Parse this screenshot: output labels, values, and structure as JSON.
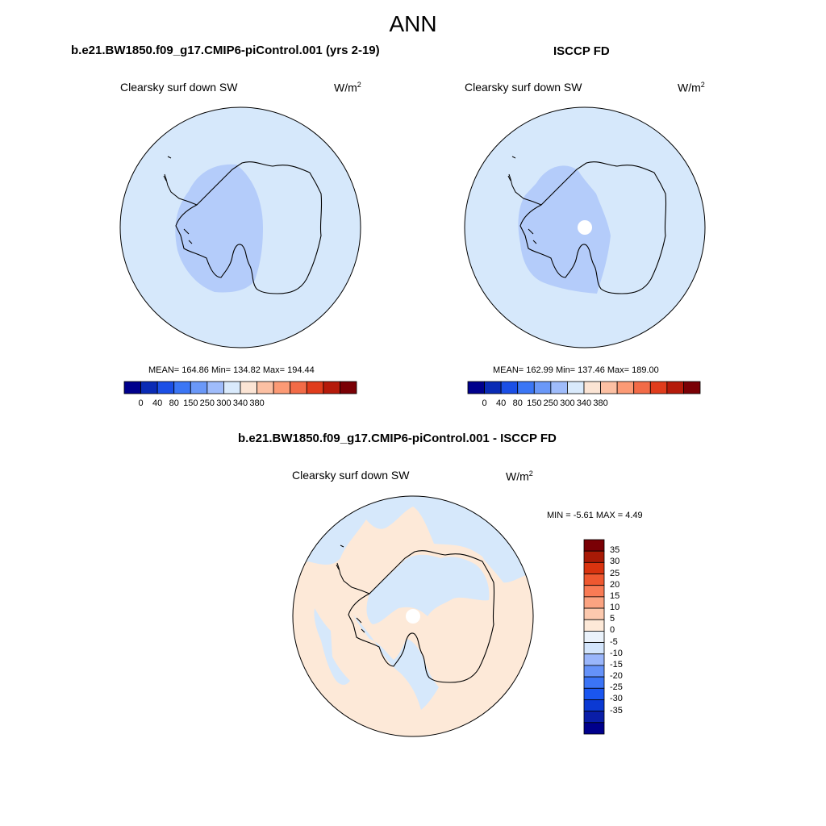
{
  "figure_title": "ANN",
  "colors": {
    "levels_abs": [
      "#00008c",
      "#0a2bb5",
      "#1b4fe6",
      "#3b76f5",
      "#6a98f8",
      "#9fbcfb",
      "#d9eafc",
      "#fbe4d4",
      "#fcc0a3",
      "#fc9a75",
      "#f26b47",
      "#e03c1c",
      "#b51a0a",
      "#7a0005"
    ],
    "levels_diff": [
      "#00008c",
      "#0a1ea8",
      "#0b39d3",
      "#1a56f0",
      "#3b74f6",
      "#6592f9",
      "#9ab6fb",
      "#d3e5fc",
      "#eaf2fb",
      "#fde9d8",
      "#fcc9ae",
      "#fba381",
      "#f97b55",
      "#ef5830",
      "#d9330f",
      "#a81a06",
      "#7a0005"
    ],
    "ocean_model": "#d6e8fb",
    "interior_model": "#b4ccfa",
    "coast": "#000000"
  },
  "panels": [
    {
      "title": "b.e21.BW1850.f09_g17.CMIP6-piControl.001 (yrs 2-19)",
      "variable": "Clearsky surf down SW",
      "units_base": "W/m",
      "units_exp": "2",
      "stats": "MEAN= 164.86  Min= 134.82  Max= 194.44",
      "tick_labels": [
        "0",
        "40",
        "80",
        "150",
        "250",
        "300",
        "340",
        "380"
      ],
      "missing_pole": false
    },
    {
      "title": "ISCCP FD",
      "variable": "Clearsky surf down SW",
      "units_base": "W/m",
      "units_exp": "2",
      "stats": "MEAN= 162.99  Min= 137.46  Max= 189.00",
      "tick_labels": [
        "0",
        "40",
        "80",
        "150",
        "250",
        "300",
        "340",
        "380"
      ],
      "missing_pole": true
    },
    {
      "title": "b.e21.BW1850.f09_g17.CMIP6-piControl.001 - ISCCP FD",
      "variable": "Clearsky surf down SW",
      "units_base": "W/m",
      "units_exp": "2",
      "stats": "MIN =  -5.61 MAX =   4.49",
      "tick_labels": [
        "35",
        "30",
        "25",
        "20",
        "15",
        "10",
        "5",
        "0",
        "-5",
        "-10",
        "-15",
        "-20",
        "-25",
        "-30",
        "-35"
      ],
      "missing_pole": true
    }
  ]
}
